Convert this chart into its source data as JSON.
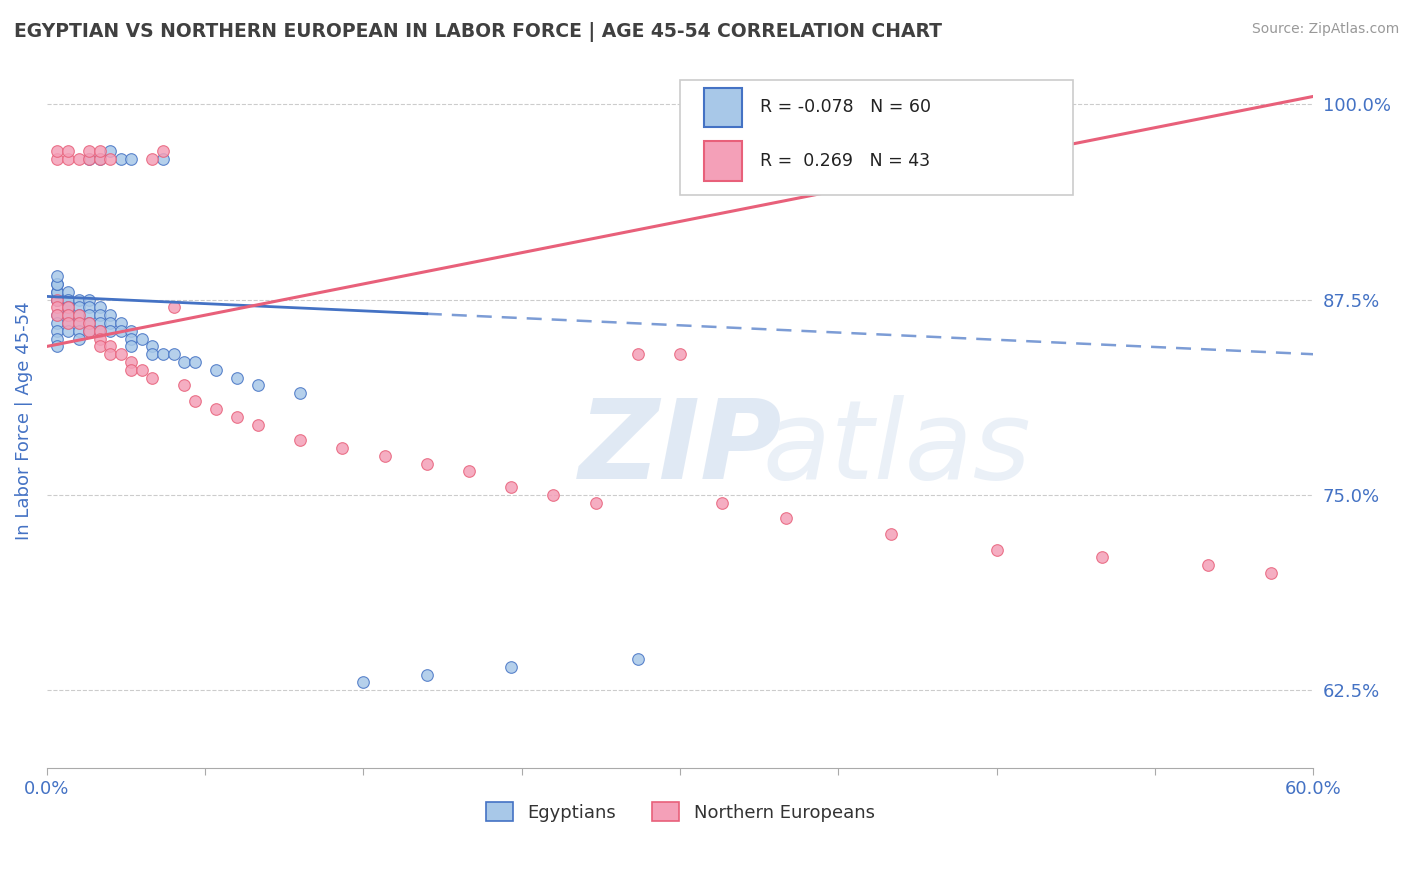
{
  "title": "EGYPTIAN VS NORTHERN EUROPEAN IN LABOR FORCE | AGE 45-54 CORRELATION CHART",
  "source": "Source: ZipAtlas.com",
  "ylabel": "In Labor Force | Age 45-54",
  "xlim": [
    0.0,
    0.6
  ],
  "ylim": [
    0.575,
    1.02
  ],
  "yticks": [
    0.625,
    0.75,
    0.875,
    1.0
  ],
  "ytick_labels": [
    "62.5%",
    "75.0%",
    "87.5%",
    "100.0%"
  ],
  "xticks": [
    0.0,
    0.075,
    0.15,
    0.225,
    0.3,
    0.375,
    0.45,
    0.525,
    0.6
  ],
  "xtick_labels": [
    "0.0%",
    "",
    "",
    "",
    "",
    "",
    "",
    "",
    "60.0%"
  ],
  "blue_color": "#a8c8e8",
  "pink_color": "#f4a0b8",
  "blue_line_color": "#4472c4",
  "pink_line_color": "#e8607a",
  "axis_color": "#4472c4",
  "title_color": "#404040",
  "source_color": "#999999",
  "blue_line_solid_end": 0.18,
  "egyptians_x": [
    0.005,
    0.005,
    0.005,
    0.005,
    0.005,
    0.005,
    0.005,
    0.005,
    0.005,
    0.005,
    0.005,
    0.005,
    0.01,
    0.01,
    0.01,
    0.01,
    0.01,
    0.01,
    0.01,
    0.01,
    0.01,
    0.01,
    0.015,
    0.015,
    0.015,
    0.015,
    0.015,
    0.015,
    0.02,
    0.02,
    0.02,
    0.02,
    0.02,
    0.025,
    0.025,
    0.025,
    0.025,
    0.03,
    0.03,
    0.03,
    0.035,
    0.035,
    0.04,
    0.04,
    0.04,
    0.045,
    0.05,
    0.05,
    0.055,
    0.06,
    0.065,
    0.07,
    0.08,
    0.09,
    0.1,
    0.12,
    0.15,
    0.18,
    0.22,
    0.28
  ],
  "egyptians_y": [
    0.875,
    0.875,
    0.88,
    0.88,
    0.885,
    0.885,
    0.89,
    0.865,
    0.86,
    0.855,
    0.85,
    0.845,
    0.875,
    0.87,
    0.87,
    0.865,
    0.86,
    0.855,
    0.88,
    0.875,
    0.87,
    0.865,
    0.875,
    0.87,
    0.865,
    0.86,
    0.855,
    0.85,
    0.875,
    0.87,
    0.865,
    0.86,
    0.855,
    0.87,
    0.865,
    0.86,
    0.855,
    0.865,
    0.86,
    0.855,
    0.86,
    0.855,
    0.855,
    0.85,
    0.845,
    0.85,
    0.845,
    0.84,
    0.84,
    0.84,
    0.835,
    0.835,
    0.83,
    0.825,
    0.82,
    0.815,
    0.63,
    0.635,
    0.64,
    0.645
  ],
  "northern_x": [
    0.005,
    0.005,
    0.005,
    0.01,
    0.01,
    0.01,
    0.015,
    0.015,
    0.02,
    0.02,
    0.025,
    0.025,
    0.025,
    0.03,
    0.03,
    0.035,
    0.04,
    0.04,
    0.045,
    0.05,
    0.06,
    0.065,
    0.07,
    0.08,
    0.09,
    0.1,
    0.12,
    0.14,
    0.16,
    0.18,
    0.2,
    0.22,
    0.24,
    0.26,
    0.28,
    0.3,
    0.32,
    0.35,
    0.4,
    0.45,
    0.5,
    0.55,
    0.58
  ],
  "northern_y": [
    0.875,
    0.87,
    0.865,
    0.87,
    0.865,
    0.86,
    0.865,
    0.86,
    0.86,
    0.855,
    0.855,
    0.85,
    0.845,
    0.845,
    0.84,
    0.84,
    0.835,
    0.83,
    0.83,
    0.825,
    0.87,
    0.82,
    0.81,
    0.805,
    0.8,
    0.795,
    0.785,
    0.78,
    0.775,
    0.77,
    0.765,
    0.755,
    0.75,
    0.745,
    0.84,
    0.84,
    0.745,
    0.735,
    0.725,
    0.715,
    0.71,
    0.705,
    0.7
  ],
  "northern_top_x": [
    0.005,
    0.005,
    0.01,
    0.01,
    0.015,
    0.02,
    0.02,
    0.025,
    0.025,
    0.03,
    0.05,
    0.055
  ],
  "northern_top_y": [
    0.965,
    0.97,
    0.965,
    0.97,
    0.965,
    0.965,
    0.97,
    0.965,
    0.97,
    0.965,
    0.965,
    0.97
  ],
  "blue_top_x": [
    0.02,
    0.025,
    0.03,
    0.035,
    0.04,
    0.055
  ],
  "blue_top_y": [
    0.965,
    0.965,
    0.97,
    0.965,
    0.965,
    0.965
  ]
}
